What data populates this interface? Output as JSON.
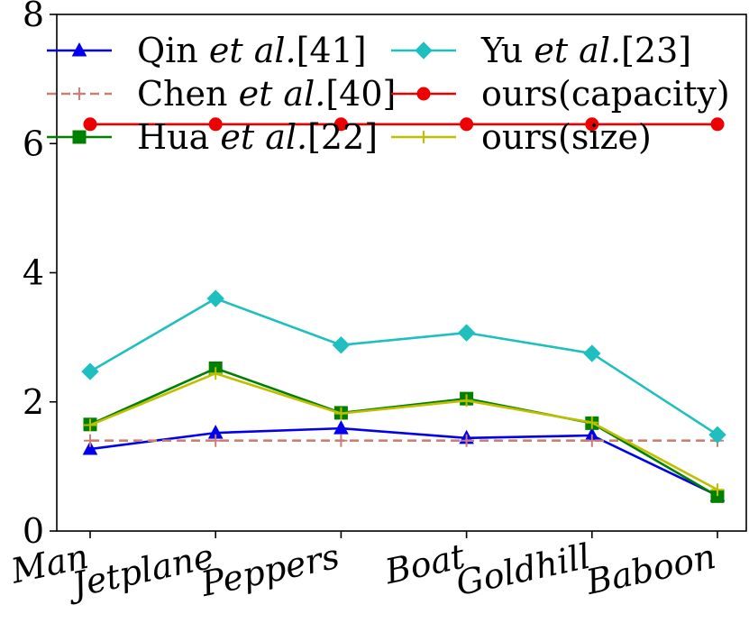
{
  "chart_data": {
    "type": "line",
    "categories": [
      "Man",
      "Jetplane",
      "Peppers",
      "Boat",
      "Goldhill",
      "Baboon"
    ],
    "ylim": [
      0,
      8
    ],
    "yticks": [
      0,
      2,
      4,
      6,
      8
    ],
    "grid": false,
    "legend_position": "top",
    "series": [
      {
        "name": "Qin et al.[41]",
        "name_main": "Qin",
        "name_ital": "et al.",
        "name_ref": "[41]",
        "color": "#0000ee",
        "marker": "triangle",
        "dash": "solid",
        "values": [
          1.27,
          1.52,
          1.59,
          1.44,
          1.48,
          0.55
        ]
      },
      {
        "name": "Chen et al.[40]",
        "name_main": "Chen",
        "name_ital": "et al.",
        "name_ref": "[40]",
        "color": "#c98072",
        "marker": "plus",
        "dash": "dashed",
        "values": [
          1.4,
          1.4,
          1.4,
          1.4,
          1.4,
          1.4
        ]
      },
      {
        "name": "Hua et al.[22]",
        "name_main": "Hua",
        "name_ital": "et al.",
        "name_ref": "[22]",
        "color": "#008000",
        "marker": "square",
        "dash": "solid",
        "values": [
          1.65,
          2.52,
          1.83,
          2.05,
          1.67,
          0.54
        ]
      },
      {
        "name": "Yu et al.[23]",
        "name_main": "Yu",
        "name_ital": "et al.",
        "name_ref": "[23]",
        "color": "#1fbfbf",
        "marker": "diamond",
        "dash": "solid",
        "values": [
          2.47,
          3.6,
          2.88,
          3.07,
          2.75,
          1.49
        ]
      },
      {
        "name": "ours(capacity)",
        "name_main": "ours(capacity)",
        "name_ital": "",
        "name_ref": "",
        "color": "#ee0000",
        "marker": "circle",
        "dash": "solid",
        "values": [
          6.3,
          6.3,
          6.3,
          6.3,
          6.3,
          6.3
        ]
      },
      {
        "name": "ours(size)",
        "name_main": "ours(size)",
        "name_ital": "",
        "name_ref": "",
        "color": "#bfbf00",
        "marker": "plus",
        "dash": "solid",
        "values": [
          1.64,
          2.44,
          1.82,
          2.02,
          1.68,
          0.64
        ]
      }
    ]
  }
}
